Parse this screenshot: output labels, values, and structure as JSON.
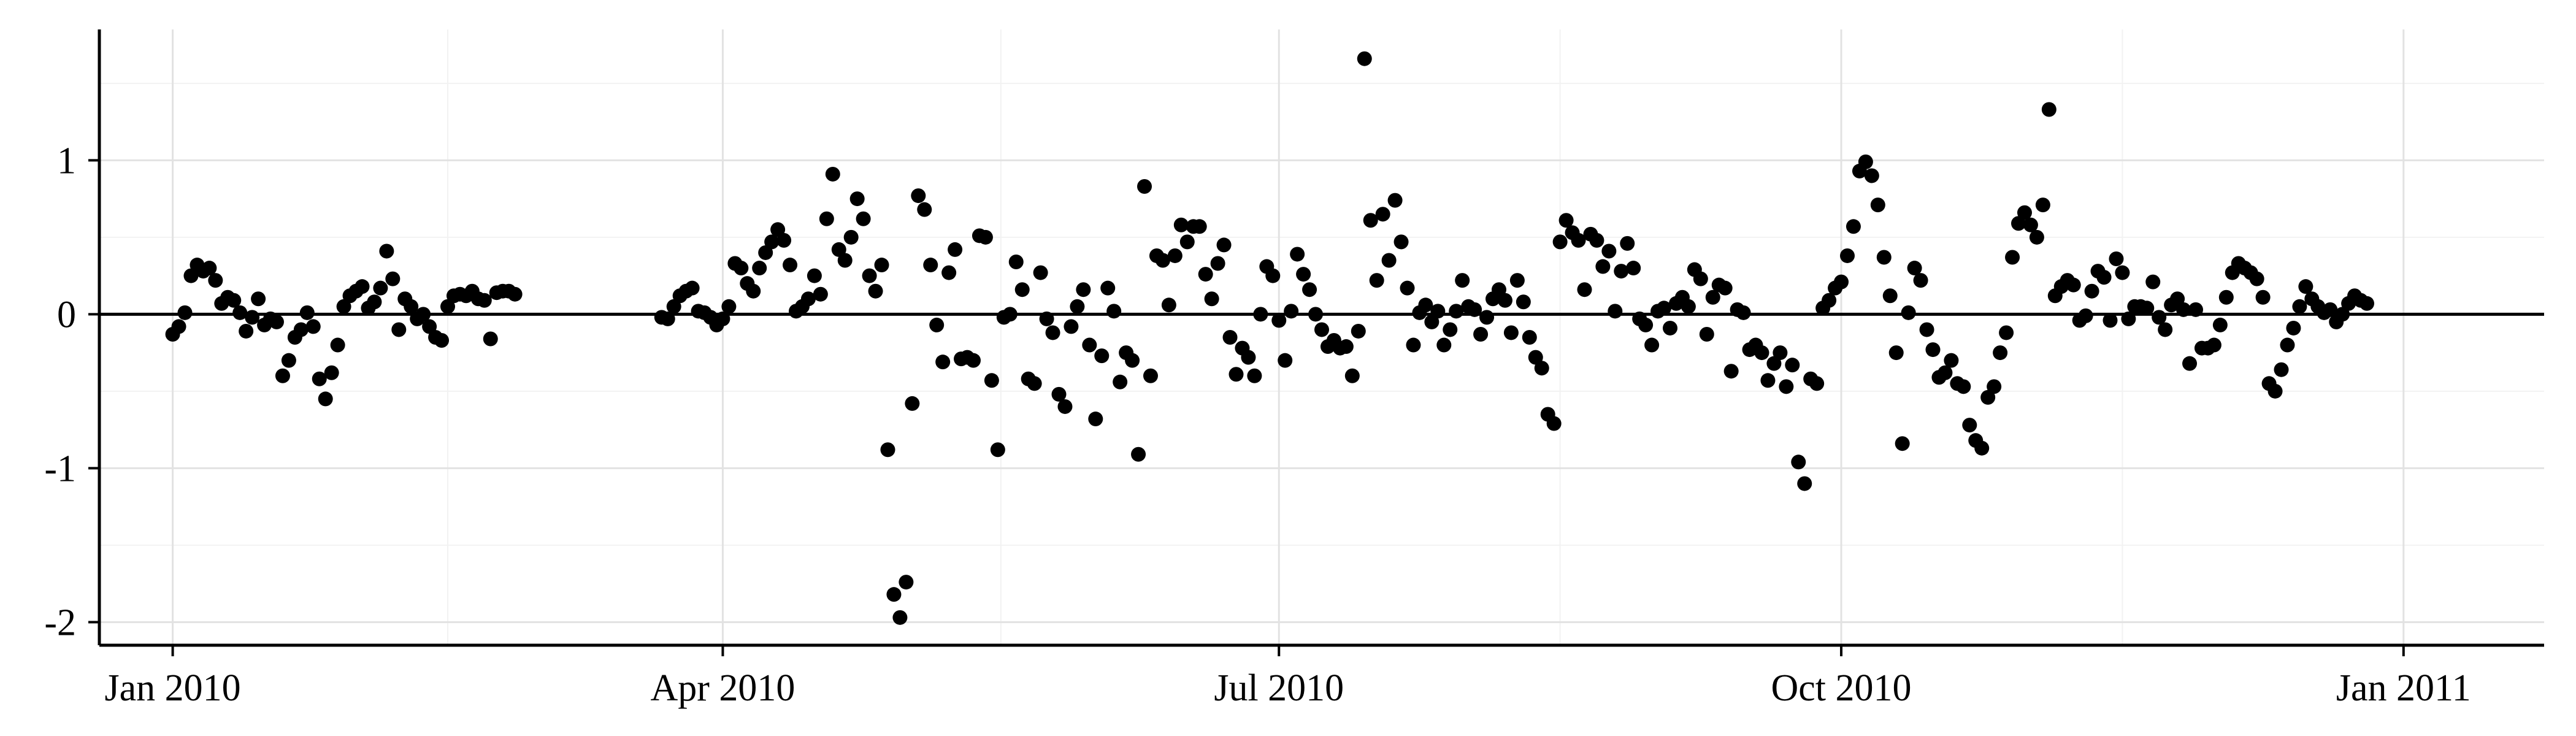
{
  "chart_data": {
    "type": "scatter",
    "title": "",
    "xlabel": "",
    "ylabel": "",
    "x_axis": {
      "type": "date",
      "range": [
        "2009-12-20",
        "2011-01-24"
      ],
      "ticks": [
        {
          "date": "2010-01-01",
          "label": "Jan 2010"
        },
        {
          "date": "2010-04-01",
          "label": "Apr 2010"
        },
        {
          "date": "2010-07-01",
          "label": "Jul 2010"
        },
        {
          "date": "2010-10-01",
          "label": "Oct 2010"
        },
        {
          "date": "2011-01-01",
          "label": "Jan 2011"
        }
      ]
    },
    "y_axis": {
      "range": [
        -2.15,
        1.85
      ],
      "ticks": [
        {
          "value": -2,
          "label": "-2"
        },
        {
          "value": -1,
          "label": "-1"
        },
        {
          "value": 0,
          "label": "0"
        },
        {
          "value": 1,
          "label": "1"
        }
      ],
      "minor_ticks": [
        -1.5,
        -0.5,
        0.5,
        1.5
      ]
    },
    "grid": true,
    "reference_line": 0,
    "point_color": "#000000",
    "points": [
      [
        "2010-01-01",
        -0.13
      ],
      [
        "2010-01-02",
        -0.08
      ],
      [
        "2010-01-03",
        0.01
      ],
      [
        "2010-01-04",
        0.25
      ],
      [
        "2010-01-05",
        0.32
      ],
      [
        "2010-01-06",
        0.28
      ],
      [
        "2010-01-07",
        0.3
      ],
      [
        "2010-01-08",
        0.22
      ],
      [
        "2010-01-09",
        0.07
      ],
      [
        "2010-01-10",
        0.11
      ],
      [
        "2010-01-11",
        0.09
      ],
      [
        "2010-01-12",
        0.01
      ],
      [
        "2010-01-13",
        -0.11
      ],
      [
        "2010-01-14",
        -0.02
      ],
      [
        "2010-01-15",
        0.1
      ],
      [
        "2010-01-16",
        -0.07
      ],
      [
        "2010-01-17",
        -0.03
      ],
      [
        "2010-01-18",
        -0.05
      ],
      [
        "2010-01-19",
        -0.4
      ],
      [
        "2010-01-20",
        -0.3
      ],
      [
        "2010-01-21",
        -0.15
      ],
      [
        "2010-01-22",
        -0.1
      ],
      [
        "2010-01-23",
        0.01
      ],
      [
        "2010-01-24",
        -0.08
      ],
      [
        "2010-01-25",
        -0.42
      ],
      [
        "2010-01-26",
        -0.55
      ],
      [
        "2010-01-27",
        -0.38
      ],
      [
        "2010-01-28",
        -0.2
      ],
      [
        "2010-01-29",
        0.05
      ],
      [
        "2010-01-30",
        0.12
      ],
      [
        "2010-01-31",
        0.15
      ],
      [
        "2010-02-01",
        0.18
      ],
      [
        "2010-02-02",
        0.04
      ],
      [
        "2010-02-03",
        0.08
      ],
      [
        "2010-02-04",
        0.17
      ],
      [
        "2010-02-05",
        0.41
      ],
      [
        "2010-02-06",
        0.23
      ],
      [
        "2010-02-07",
        -0.1
      ],
      [
        "2010-02-08",
        0.1
      ],
      [
        "2010-02-09",
        0.05
      ],
      [
        "2010-02-10",
        -0.03
      ],
      [
        "2010-02-11",
        0.0
      ],
      [
        "2010-02-12",
        -0.08
      ],
      [
        "2010-02-13",
        -0.15
      ],
      [
        "2010-02-14",
        -0.17
      ],
      [
        "2010-02-15",
        0.05
      ],
      [
        "2010-02-16",
        0.12
      ],
      [
        "2010-02-17",
        0.13
      ],
      [
        "2010-02-18",
        0.12
      ],
      [
        "2010-02-19",
        0.15
      ],
      [
        "2010-02-20",
        0.1
      ],
      [
        "2010-02-21",
        0.09
      ],
      [
        "2010-02-22",
        -0.16
      ],
      [
        "2010-02-23",
        0.14
      ],
      [
        "2010-02-24",
        0.15
      ],
      [
        "2010-02-25",
        0.15
      ],
      [
        "2010-02-26",
        0.13
      ],
      [
        "2010-03-22",
        -0.02
      ],
      [
        "2010-03-23",
        -0.03
      ],
      [
        "2010-03-24",
        0.05
      ],
      [
        "2010-03-25",
        0.12
      ],
      [
        "2010-03-26",
        0.15
      ],
      [
        "2010-03-27",
        0.17
      ],
      [
        "2010-03-28",
        0.02
      ],
      [
        "2010-03-29",
        0.01
      ],
      [
        "2010-03-30",
        -0.02
      ],
      [
        "2010-03-31",
        -0.07
      ],
      [
        "2010-04-01",
        -0.03
      ],
      [
        "2010-04-02",
        0.05
      ],
      [
        "2010-04-03",
        0.33
      ],
      [
        "2010-04-04",
        0.3
      ],
      [
        "2010-04-05",
        0.2
      ],
      [
        "2010-04-06",
        0.15
      ],
      [
        "2010-04-07",
        0.3
      ],
      [
        "2010-04-08",
        0.4
      ],
      [
        "2010-04-09",
        0.47
      ],
      [
        "2010-04-10",
        0.55
      ],
      [
        "2010-04-11",
        0.48
      ],
      [
        "2010-04-12",
        0.32
      ],
      [
        "2010-04-13",
        0.02
      ],
      [
        "2010-04-14",
        0.05
      ],
      [
        "2010-04-15",
        0.1
      ],
      [
        "2010-04-16",
        0.25
      ],
      [
        "2010-04-17",
        0.13
      ],
      [
        "2010-04-18",
        0.62
      ],
      [
        "2010-04-19",
        0.91
      ],
      [
        "2010-04-20",
        0.42
      ],
      [
        "2010-04-21",
        0.35
      ],
      [
        "2010-04-22",
        0.5
      ],
      [
        "2010-04-23",
        0.75
      ],
      [
        "2010-04-24",
        0.62
      ],
      [
        "2010-04-25",
        0.25
      ],
      [
        "2010-04-26",
        0.15
      ],
      [
        "2010-04-27",
        0.32
      ],
      [
        "2010-04-28",
        -0.88
      ],
      [
        "2010-04-29",
        -1.82
      ],
      [
        "2010-04-30",
        -1.97
      ],
      [
        "2010-05-01",
        -1.74
      ],
      [
        "2010-05-02",
        -0.58
      ],
      [
        "2010-05-03",
        0.77
      ],
      [
        "2010-05-04",
        0.68
      ],
      [
        "2010-05-05",
        0.32
      ],
      [
        "2010-05-06",
        -0.07
      ],
      [
        "2010-05-07",
        -0.31
      ],
      [
        "2010-05-08",
        0.27
      ],
      [
        "2010-05-09",
        0.42
      ],
      [
        "2010-05-10",
        -0.29
      ],
      [
        "2010-05-11",
        -0.28
      ],
      [
        "2010-05-12",
        -0.3
      ],
      [
        "2010-05-13",
        0.51
      ],
      [
        "2010-05-14",
        0.5
      ],
      [
        "2010-05-15",
        -0.43
      ],
      [
        "2010-05-16",
        -0.88
      ],
      [
        "2010-05-17",
        -0.02
      ],
      [
        "2010-05-18",
        0.0
      ],
      [
        "2010-05-19",
        0.34
      ],
      [
        "2010-05-20",
        0.16
      ],
      [
        "2010-05-21",
        -0.42
      ],
      [
        "2010-05-22",
        -0.45
      ],
      [
        "2010-05-23",
        0.27
      ],
      [
        "2010-05-24",
        -0.03
      ],
      [
        "2010-05-25",
        -0.12
      ],
      [
        "2010-05-26",
        -0.52
      ],
      [
        "2010-05-27",
        -0.6
      ],
      [
        "2010-05-28",
        -0.08
      ],
      [
        "2010-05-29",
        0.05
      ],
      [
        "2010-05-30",
        0.16
      ],
      [
        "2010-05-31",
        -0.2
      ],
      [
        "2010-06-01",
        -0.68
      ],
      [
        "2010-06-02",
        -0.27
      ],
      [
        "2010-06-03",
        0.17
      ],
      [
        "2010-06-04",
        0.02
      ],
      [
        "2010-06-05",
        -0.44
      ],
      [
        "2010-06-06",
        -0.25
      ],
      [
        "2010-06-07",
        -0.3
      ],
      [
        "2010-06-08",
        -0.91
      ],
      [
        "2010-06-09",
        0.83
      ],
      [
        "2010-06-10",
        -0.4
      ],
      [
        "2010-06-11",
        0.38
      ],
      [
        "2010-06-12",
        0.35
      ],
      [
        "2010-06-13",
        0.06
      ],
      [
        "2010-06-14",
        0.38
      ],
      [
        "2010-06-15",
        0.58
      ],
      [
        "2010-06-16",
        0.47
      ],
      [
        "2010-06-17",
        0.57
      ],
      [
        "2010-06-18",
        0.57
      ],
      [
        "2010-06-19",
        0.26
      ],
      [
        "2010-06-20",
        0.1
      ],
      [
        "2010-06-21",
        0.33
      ],
      [
        "2010-06-22",
        0.45
      ],
      [
        "2010-06-23",
        -0.15
      ],
      [
        "2010-06-24",
        -0.39
      ],
      [
        "2010-06-25",
        -0.22
      ],
      [
        "2010-06-26",
        -0.28
      ],
      [
        "2010-06-27",
        -0.4
      ],
      [
        "2010-06-28",
        0.0
      ],
      [
        "2010-06-29",
        0.31
      ],
      [
        "2010-06-30",
        0.25
      ],
      [
        "2010-07-01",
        -0.04
      ],
      [
        "2010-07-02",
        -0.3
      ],
      [
        "2010-07-03",
        0.02
      ],
      [
        "2010-07-04",
        0.39
      ],
      [
        "2010-07-05",
        0.26
      ],
      [
        "2010-07-06",
        0.16
      ],
      [
        "2010-07-07",
        0.0
      ],
      [
        "2010-07-08",
        -0.1
      ],
      [
        "2010-07-09",
        -0.21
      ],
      [
        "2010-07-10",
        -0.17
      ],
      [
        "2010-07-11",
        -0.22
      ],
      [
        "2010-07-12",
        -0.21
      ],
      [
        "2010-07-13",
        -0.4
      ],
      [
        "2010-07-14",
        -0.11
      ],
      [
        "2010-07-15",
        1.66
      ],
      [
        "2010-07-16",
        0.61
      ],
      [
        "2010-07-17",
        0.22
      ],
      [
        "2010-07-18",
        0.65
      ],
      [
        "2010-07-19",
        0.35
      ],
      [
        "2010-07-20",
        0.74
      ],
      [
        "2010-07-21",
        0.47
      ],
      [
        "2010-07-22",
        0.17
      ],
      [
        "2010-07-23",
        -0.2
      ],
      [
        "2010-07-24",
        0.01
      ],
      [
        "2010-07-25",
        0.06
      ],
      [
        "2010-07-26",
        -0.05
      ],
      [
        "2010-07-27",
        0.02
      ],
      [
        "2010-07-28",
        -0.2
      ],
      [
        "2010-07-29",
        -0.1
      ],
      [
        "2010-07-30",
        0.02
      ],
      [
        "2010-07-31",
        0.22
      ],
      [
        "2010-08-01",
        0.05
      ],
      [
        "2010-08-02",
        0.03
      ],
      [
        "2010-08-03",
        -0.13
      ],
      [
        "2010-08-04",
        -0.02
      ],
      [
        "2010-08-05",
        0.1
      ],
      [
        "2010-08-06",
        0.16
      ],
      [
        "2010-08-07",
        0.09
      ],
      [
        "2010-08-08",
        -0.12
      ],
      [
        "2010-08-09",
        0.22
      ],
      [
        "2010-08-10",
        0.08
      ],
      [
        "2010-08-11",
        -0.15
      ],
      [
        "2010-08-12",
        -0.28
      ],
      [
        "2010-08-13",
        -0.35
      ],
      [
        "2010-08-14",
        -0.65
      ],
      [
        "2010-08-15",
        -0.71
      ],
      [
        "2010-08-16",
        0.47
      ],
      [
        "2010-08-17",
        0.61
      ],
      [
        "2010-08-18",
        0.53
      ],
      [
        "2010-08-19",
        0.48
      ],
      [
        "2010-08-20",
        0.16
      ],
      [
        "2010-08-21",
        0.52
      ],
      [
        "2010-08-22",
        0.48
      ],
      [
        "2010-08-23",
        0.31
      ],
      [
        "2010-08-24",
        0.41
      ],
      [
        "2010-08-25",
        0.02
      ],
      [
        "2010-08-26",
        0.28
      ],
      [
        "2010-08-27",
        0.46
      ],
      [
        "2010-08-28",
        0.3
      ],
      [
        "2010-08-29",
        -0.03
      ],
      [
        "2010-08-30",
        -0.07
      ],
      [
        "2010-08-31",
        -0.2
      ],
      [
        "2010-09-01",
        0.02
      ],
      [
        "2010-09-02",
        0.04
      ],
      [
        "2010-09-03",
        -0.09
      ],
      [
        "2010-09-04",
        0.07
      ],
      [
        "2010-09-05",
        0.11
      ],
      [
        "2010-09-06",
        0.05
      ],
      [
        "2010-09-07",
        0.29
      ],
      [
        "2010-09-08",
        0.23
      ],
      [
        "2010-09-09",
        -0.13
      ],
      [
        "2010-09-10",
        0.11
      ],
      [
        "2010-09-11",
        0.19
      ],
      [
        "2010-09-12",
        0.17
      ],
      [
        "2010-09-13",
        -0.37
      ],
      [
        "2010-09-14",
        0.03
      ],
      [
        "2010-09-15",
        0.01
      ],
      [
        "2010-09-16",
        -0.23
      ],
      [
        "2010-09-17",
        -0.2
      ],
      [
        "2010-09-18",
        -0.25
      ],
      [
        "2010-09-19",
        -0.43
      ],
      [
        "2010-09-20",
        -0.32
      ],
      [
        "2010-09-21",
        -0.25
      ],
      [
        "2010-09-22",
        -0.47
      ],
      [
        "2010-09-23",
        -0.33
      ],
      [
        "2010-09-24",
        -0.96
      ],
      [
        "2010-09-25",
        -1.1
      ],
      [
        "2010-09-26",
        -0.42
      ],
      [
        "2010-09-27",
        -0.45
      ],
      [
        "2010-09-28",
        0.04
      ],
      [
        "2010-09-29",
        0.09
      ],
      [
        "2010-09-30",
        0.17
      ],
      [
        "2010-10-01",
        0.21
      ],
      [
        "2010-10-02",
        0.38
      ],
      [
        "2010-10-03",
        0.57
      ],
      [
        "2010-10-04",
        0.93
      ],
      [
        "2010-10-05",
        0.99
      ],
      [
        "2010-10-06",
        0.9
      ],
      [
        "2010-10-07",
        0.71
      ],
      [
        "2010-10-08",
        0.37
      ],
      [
        "2010-10-09",
        0.12
      ],
      [
        "2010-10-10",
        -0.25
      ],
      [
        "2010-10-11",
        -0.84
      ],
      [
        "2010-10-12",
        0.01
      ],
      [
        "2010-10-13",
        0.3
      ],
      [
        "2010-10-14",
        0.22
      ],
      [
        "2010-10-15",
        -0.1
      ],
      [
        "2010-10-16",
        -0.23
      ],
      [
        "2010-10-17",
        -0.41
      ],
      [
        "2010-10-18",
        -0.38
      ],
      [
        "2010-10-19",
        -0.3
      ],
      [
        "2010-10-20",
        -0.45
      ],
      [
        "2010-10-21",
        -0.47
      ],
      [
        "2010-10-22",
        -0.72
      ],
      [
        "2010-10-23",
        -0.82
      ],
      [
        "2010-10-24",
        -0.87
      ],
      [
        "2010-10-25",
        -0.54
      ],
      [
        "2010-10-26",
        -0.47
      ],
      [
        "2010-10-27",
        -0.25
      ],
      [
        "2010-10-28",
        -0.12
      ],
      [
        "2010-10-29",
        0.37
      ],
      [
        "2010-10-30",
        0.59
      ],
      [
        "2010-10-31",
        0.66
      ],
      [
        "2010-11-01",
        0.58
      ],
      [
        "2010-11-02",
        0.5
      ],
      [
        "2010-11-03",
        0.71
      ],
      [
        "2010-11-04",
        1.33
      ],
      [
        "2010-11-05",
        0.12
      ],
      [
        "2010-11-06",
        0.18
      ],
      [
        "2010-11-07",
        0.22
      ],
      [
        "2010-11-08",
        0.19
      ],
      [
        "2010-11-09",
        -0.04
      ],
      [
        "2010-11-10",
        -0.01
      ],
      [
        "2010-11-11",
        0.15
      ],
      [
        "2010-11-12",
        0.28
      ],
      [
        "2010-11-13",
        0.24
      ],
      [
        "2010-11-14",
        -0.04
      ],
      [
        "2010-11-15",
        0.36
      ],
      [
        "2010-11-16",
        0.27
      ],
      [
        "2010-11-17",
        -0.03
      ],
      [
        "2010-11-18",
        0.05
      ],
      [
        "2010-11-19",
        0.05
      ],
      [
        "2010-11-20",
        0.04
      ],
      [
        "2010-11-21",
        0.21
      ],
      [
        "2010-11-22",
        -0.02
      ],
      [
        "2010-11-23",
        -0.1
      ],
      [
        "2010-11-24",
        0.06
      ],
      [
        "2010-11-25",
        0.1
      ],
      [
        "2010-11-26",
        0.03
      ],
      [
        "2010-11-27",
        -0.32
      ],
      [
        "2010-11-28",
        0.03
      ],
      [
        "2010-11-29",
        -0.22
      ],
      [
        "2010-11-30",
        -0.22
      ],
      [
        "2010-12-01",
        -0.2
      ],
      [
        "2010-12-02",
        -0.07
      ],
      [
        "2010-12-03",
        0.11
      ],
      [
        "2010-12-04",
        0.27
      ],
      [
        "2010-12-05",
        0.33
      ],
      [
        "2010-12-06",
        0.3
      ],
      [
        "2010-12-07",
        0.27
      ],
      [
        "2010-12-08",
        0.23
      ],
      [
        "2010-12-09",
        0.11
      ],
      [
        "2010-12-10",
        -0.45
      ],
      [
        "2010-12-11",
        -0.5
      ],
      [
        "2010-12-12",
        -0.36
      ],
      [
        "2010-12-13",
        -0.2
      ],
      [
        "2010-12-14",
        -0.09
      ],
      [
        "2010-12-15",
        0.05
      ],
      [
        "2010-12-16",
        0.18
      ],
      [
        "2010-12-17",
        0.1
      ],
      [
        "2010-12-18",
        0.05
      ],
      [
        "2010-12-19",
        0.01
      ],
      [
        "2010-12-20",
        0.03
      ],
      [
        "2010-12-21",
        -0.05
      ],
      [
        "2010-12-22",
        0.0
      ],
      [
        "2010-12-23",
        0.07
      ],
      [
        "2010-12-24",
        0.12
      ],
      [
        "2010-12-25",
        0.09
      ],
      [
        "2010-12-26",
        0.07
      ]
    ]
  }
}
